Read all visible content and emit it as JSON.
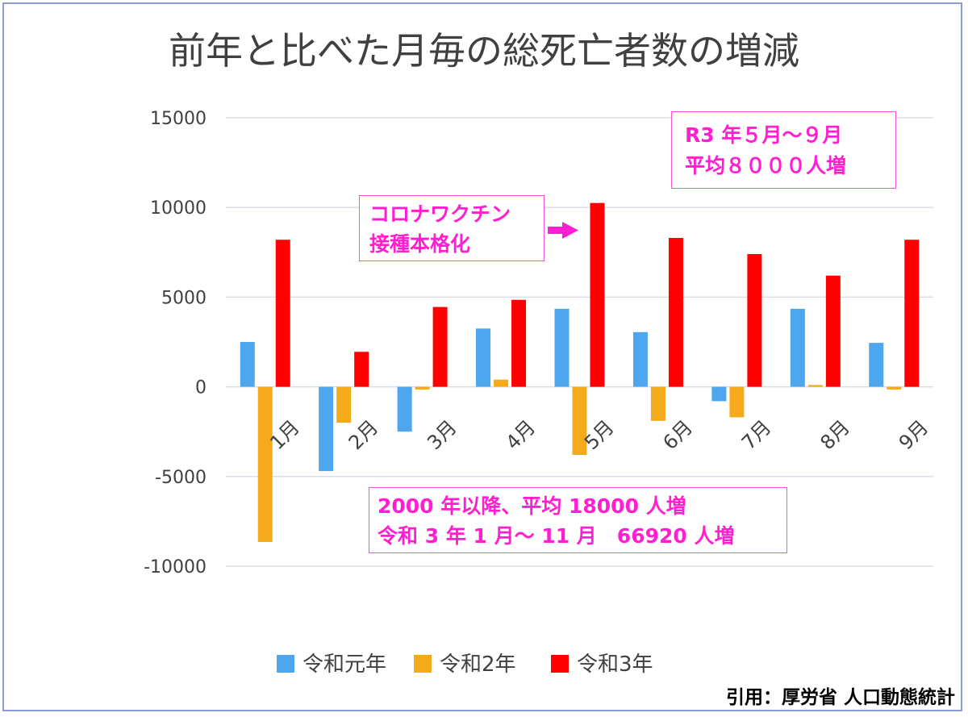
{
  "chart_data": {
    "type": "bar",
    "title": "前年と比べた月毎の総死亡者数の増減",
    "categories": [
      "1月",
      "2月",
      "3月",
      "4月",
      "5月",
      "6月",
      "7月",
      "8月",
      "9月"
    ],
    "series": [
      {
        "name": "令和元年",
        "color": "#4ea6ee",
        "values": [
          2500,
          -4700,
          -2500,
          3250,
          4350,
          3050,
          -800,
          4350,
          2450
        ]
      },
      {
        "name": "令和2年",
        "color": "#f5aa1c",
        "values": [
          -8650,
          -2000,
          -150,
          400,
          -3800,
          -1900,
          -1700,
          100,
          -150
        ]
      },
      {
        "name": "令和3年",
        "color": "#ff0000",
        "values": [
          8200,
          1950,
          4450,
          4850,
          10250,
          8300,
          7400,
          6200,
          8200
        ]
      }
    ],
    "yticks": [
      "15000",
      "10000",
      "5000",
      "0",
      "-5000",
      "-10000"
    ],
    "ylim": [
      -10000,
      15000
    ],
    "grid": true,
    "legend_position": "bottom"
  },
  "annotations": {
    "r3": [
      "R3 年５月～９月",
      "平均８０００人増"
    ],
    "vaccine": [
      "コロナワクチン",
      "接種本格化"
    ],
    "since2000": [
      "2000 年以降、平均 18000 人増",
      "令和 3 年 1 月～ 11 月　66920 人増"
    ]
  },
  "colors": {
    "annotation": "#ff1fd0",
    "arrow": "#ff1fd0",
    "grid": "#d9dfe6"
  },
  "source": "引用：厚労省 人口動態統計"
}
